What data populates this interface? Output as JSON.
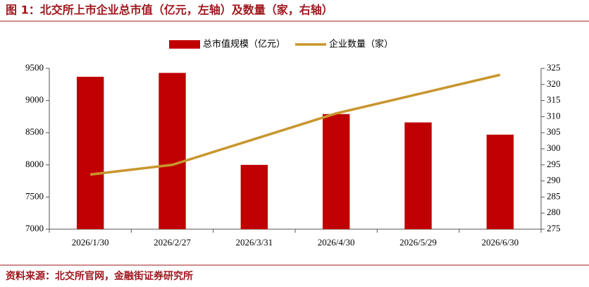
{
  "chart_data": {
    "type": "bar-line",
    "title": "图 1：北交所上市企业总市值（亿元，左轴）及数量（家，右轴）",
    "source": "资料来源：北交所官网，金融街证券研究所",
    "categories": [
      "2026/1/30",
      "2026/2/27",
      "2026/3/31",
      "2026/4/30",
      "2026/5/29",
      "2026/6/30"
    ],
    "series": [
      {
        "name": "总市值规模（亿元）",
        "type": "bar",
        "color": "#c00000",
        "values": [
          9370,
          9430,
          8000,
          8790,
          8660,
          8470
        ]
      },
      {
        "name": "企业数量（家）",
        "type": "line",
        "color": "#c8962d",
        "axis": "y2",
        "values": [
          292,
          295,
          303,
          311,
          317,
          323
        ]
      }
    ],
    "ylim": [
      7000,
      9500
    ],
    "yticks": [
      7000,
      7500,
      8000,
      8500,
      9000,
      9500
    ],
    "y2lim": [
      275,
      325
    ],
    "y2ticks": [
      275,
      280,
      285,
      290,
      295,
      300,
      305,
      310,
      315,
      320,
      325
    ],
    "legend": "top",
    "grid": false
  }
}
